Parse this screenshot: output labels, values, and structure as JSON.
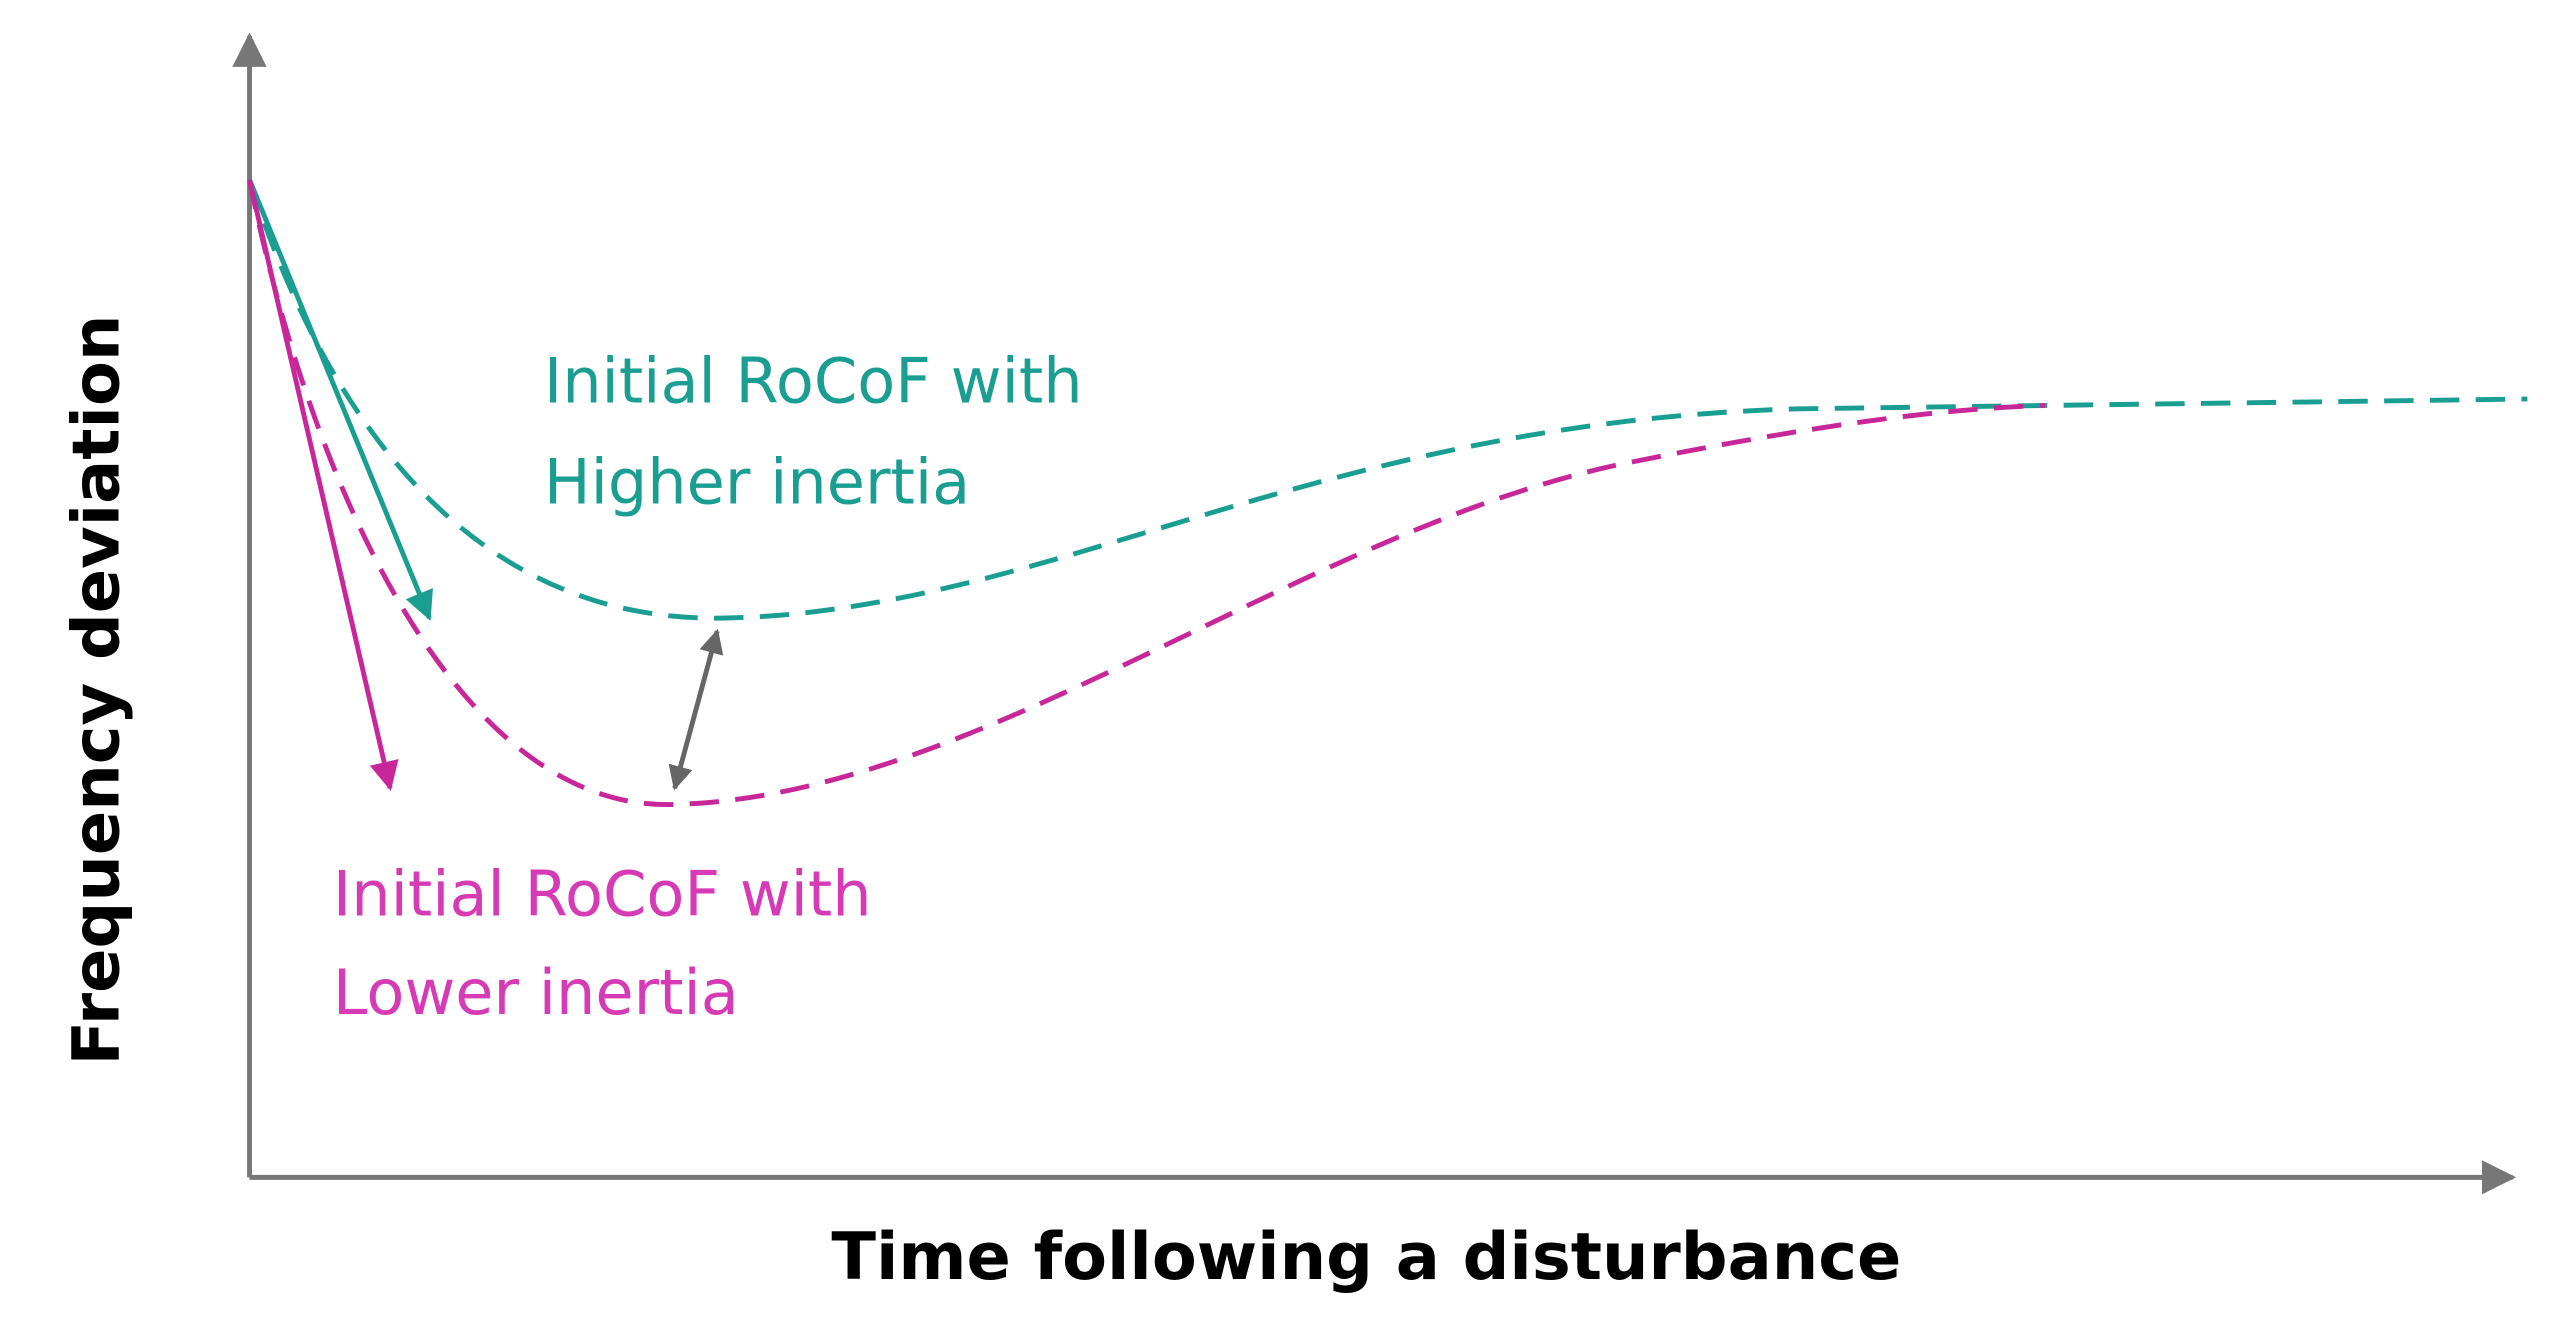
{
  "x_axis_label": "Time following a disturbance",
  "y_axis_label": "Frequency deviation",
  "annotations": [
    {
      "lines": [
        "Initial RoCoF with",
        "Higher inertia"
      ]
    },
    {
      "lines": [
        "Initial RoCoF with",
        "Lower inertia"
      ]
    }
  ]
}
